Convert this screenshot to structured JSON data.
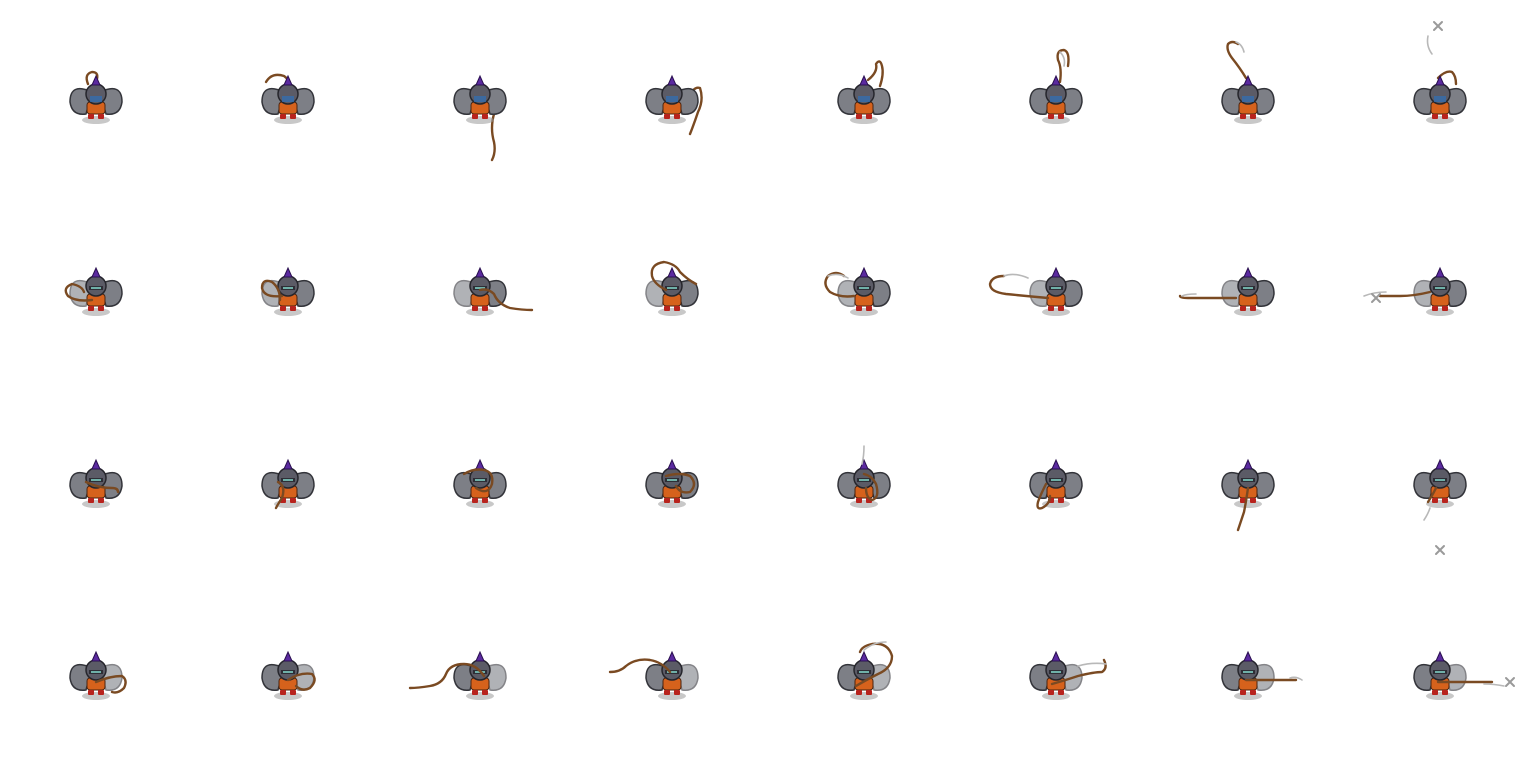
{
  "sprite_sheet": {
    "columns": 8,
    "rows": 4,
    "animation": "whip-attack",
    "directions": [
      {
        "name": "up",
        "frames": 8
      },
      {
        "name": "left",
        "frames": 8
      },
      {
        "name": "down",
        "frames": 8
      },
      {
        "name": "right",
        "frames": 8
      }
    ],
    "colors": {
      "whip": "#7a4a22",
      "armor": "#5b5b66",
      "wings": "#7d7f86",
      "plume": "#5b2aa0",
      "tunic": "#d6621c",
      "boots": "#b8231d",
      "trail": "#b8b8b8",
      "sparkle": "#9a9a9a"
    }
  }
}
